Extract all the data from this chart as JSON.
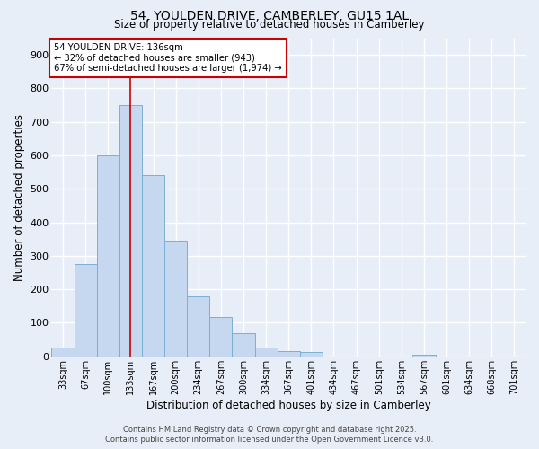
{
  "title_line1": "54, YOULDEN DRIVE, CAMBERLEY, GU15 1AL",
  "title_line2": "Size of property relative to detached houses in Camberley",
  "xlabel": "Distribution of detached houses by size in Camberley",
  "ylabel": "Number of detached properties",
  "bar_labels": [
    "33sqm",
    "67sqm",
    "100sqm",
    "133sqm",
    "167sqm",
    "200sqm",
    "234sqm",
    "267sqm",
    "300sqm",
    "334sqm",
    "367sqm",
    "401sqm",
    "434sqm",
    "467sqm",
    "501sqm",
    "534sqm",
    "567sqm",
    "601sqm",
    "634sqm",
    "668sqm",
    "701sqm"
  ],
  "bar_values": [
    25,
    275,
    600,
    750,
    540,
    345,
    180,
    118,
    68,
    25,
    15,
    13,
    0,
    0,
    0,
    0,
    5,
    0,
    0,
    0,
    0
  ],
  "bar_color": "#c5d8f0",
  "bar_edge_color": "#7bafd4",
  "vline_x": 3,
  "vline_color": "#cc0000",
  "annotation_text": "54 YOULDEN DRIVE: 136sqm\n← 32% of detached houses are smaller (943)\n67% of semi-detached houses are larger (1,974) →",
  "annotation_box_color": "#ffffff",
  "annotation_box_edge": "#cc0000",
  "background_color": "#e8eef8",
  "grid_color": "#ffffff",
  "ylim": [
    0,
    950
  ],
  "yticks": [
    0,
    100,
    200,
    300,
    400,
    500,
    600,
    700,
    800,
    900
  ],
  "footer_line1": "Contains HM Land Registry data © Crown copyright and database right 2025.",
  "footer_line2": "Contains public sector information licensed under the Open Government Licence v3.0."
}
